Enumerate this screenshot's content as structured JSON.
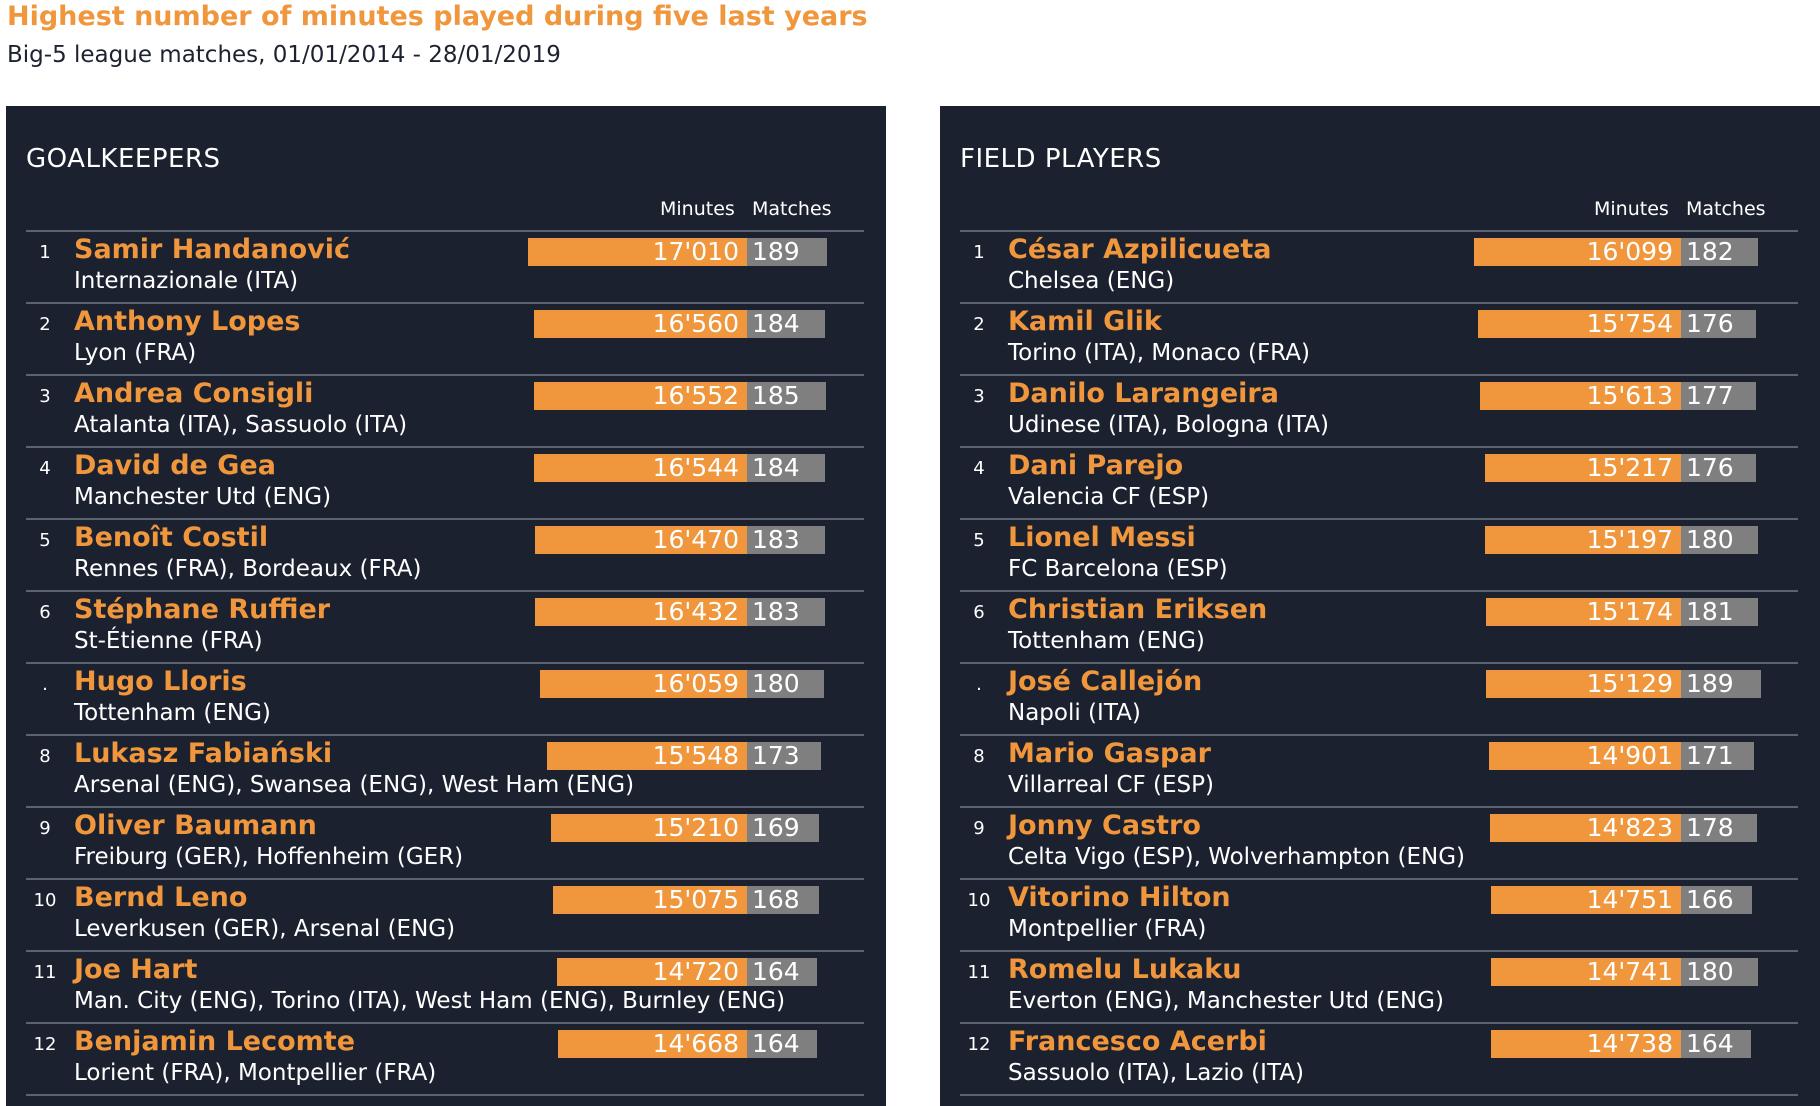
{
  "title": "Highest number of minutes played during five last years",
  "subtitle": "Big-5 league matches, 01/01/2014 - 28/01/2019",
  "colors": {
    "minutes_bar": "#f0963c",
    "matches_bar": "#7f7f7f",
    "panel_bg": "#1b212e",
    "accent_text": "#f0963c"
  },
  "columns": {
    "minutes": "Minutes",
    "matches": "Matches"
  },
  "chart_data": [
    {
      "type": "bar",
      "title": "GOALKEEPERS",
      "rows": [
        {
          "rank": "1",
          "name": "Samir Handanović",
          "club": "Internazionale (ITA)",
          "minutes": 17010,
          "minutes_label": "17'010",
          "matches": 189
        },
        {
          "rank": "2",
          "name": "Anthony Lopes",
          "club": "Lyon (FRA)",
          "minutes": 16560,
          "minutes_label": "16'560",
          "matches": 184
        },
        {
          "rank": "3",
          "name": "Andrea Consigli",
          "club": "Atalanta (ITA), Sassuolo (ITA)",
          "minutes": 16552,
          "minutes_label": "16'552",
          "matches": 185
        },
        {
          "rank": "4",
          "name": "David de Gea",
          "club": "Manchester Utd (ENG)",
          "minutes": 16544,
          "minutes_label": "16'544",
          "matches": 184
        },
        {
          "rank": "5",
          "name": "Benoît Costil",
          "club": "Rennes (FRA), Bordeaux (FRA)",
          "minutes": 16470,
          "minutes_label": "16'470",
          "matches": 183
        },
        {
          "rank": "6",
          "name": "Stéphane Ruffier",
          "club": "St-Étienne (FRA)",
          "minutes": 16432,
          "minutes_label": "16'432",
          "matches": 183
        },
        {
          "rank": ".",
          "name": "Hugo Lloris",
          "club": "Tottenham (ENG)",
          "minutes": 16059,
          "minutes_label": "16'059",
          "matches": 180
        },
        {
          "rank": "8",
          "name": "Lukasz Fabiański",
          "club": "Arsenal (ENG), Swansea (ENG), West Ham (ENG)",
          "minutes": 15548,
          "minutes_label": "15'548",
          "matches": 173
        },
        {
          "rank": "9",
          "name": "Oliver Baumann",
          "club": "Freiburg (GER), Hoffenheim (GER)",
          "minutes": 15210,
          "minutes_label": "15'210",
          "matches": 169
        },
        {
          "rank": "10",
          "name": "Bernd Leno",
          "club": "Leverkusen (GER), Arsenal (ENG)",
          "minutes": 15075,
          "minutes_label": "15'075",
          "matches": 168
        },
        {
          "rank": "11",
          "name": "Joe Hart",
          "club": "Man. City (ENG), Torino (ITA), West Ham (ENG), Burnley (ENG)",
          "minutes": 14720,
          "minutes_label": "14'720",
          "matches": 164
        },
        {
          "rank": "12",
          "name": "Benjamin Lecomte",
          "club": "Lorient (FRA), Montpellier (FRA)",
          "minutes": 14668,
          "minutes_label": "14'668",
          "matches": 164
        }
      ]
    },
    {
      "type": "bar",
      "title": "FIELD PLAYERS",
      "rows": [
        {
          "rank": "1",
          "name": "César Azpilicueta",
          "club": "Chelsea (ENG)",
          "minutes": 16099,
          "minutes_label": "16'099",
          "matches": 182
        },
        {
          "rank": "2",
          "name": "Kamil Glik",
          "club": "Torino (ITA), Monaco (FRA)",
          "minutes": 15754,
          "minutes_label": "15'754",
          "matches": 176
        },
        {
          "rank": "3",
          "name": "Danilo Larangeira",
          "club": "Udinese (ITA), Bologna (ITA)",
          "minutes": 15613,
          "minutes_label": "15'613",
          "matches": 177
        },
        {
          "rank": "4",
          "name": "Dani Parejo",
          "club": "Valencia CF (ESP)",
          "minutes": 15217,
          "minutes_label": "15'217",
          "matches": 176
        },
        {
          "rank": "5",
          "name": "Lionel Messi",
          "club": "FC Barcelona (ESP)",
          "minutes": 15197,
          "minutes_label": "15'197",
          "matches": 180
        },
        {
          "rank": "6",
          "name": "Christian Eriksen",
          "club": "Tottenham (ENG)",
          "minutes": 15174,
          "minutes_label": "15'174",
          "matches": 181
        },
        {
          "rank": ".",
          "name": "José Callejón",
          "club": "Napoli (ITA)",
          "minutes": 15129,
          "minutes_label": "15'129",
          "matches": 189
        },
        {
          "rank": "8",
          "name": "Mario Gaspar",
          "club": "Villarreal CF (ESP)",
          "minutes": 14901,
          "minutes_label": "14'901",
          "matches": 171
        },
        {
          "rank": "9",
          "name": "Jonny Castro",
          "club": "Celta Vigo (ESP), Wolverhampton (ENG)",
          "minutes": 14823,
          "minutes_label": "14'823",
          "matches": 178
        },
        {
          "rank": "10",
          "name": "Vitorino Hilton",
          "club": "Montpellier (FRA)",
          "minutes": 14751,
          "minutes_label": "14'751",
          "matches": 166
        },
        {
          "rank": "11",
          "name": "Romelu Lukaku",
          "club": "Everton (ENG), Manchester Utd (ENG)",
          "minutes": 14741,
          "minutes_label": "14'741",
          "matches": 180
        },
        {
          "rank": "12",
          "name": "Francesco Acerbi",
          "club": "Sassuolo (ITA), Lazio (ITA)",
          "minutes": 14738,
          "minutes_label": "14'738",
          "matches": 164
        }
      ]
    }
  ]
}
